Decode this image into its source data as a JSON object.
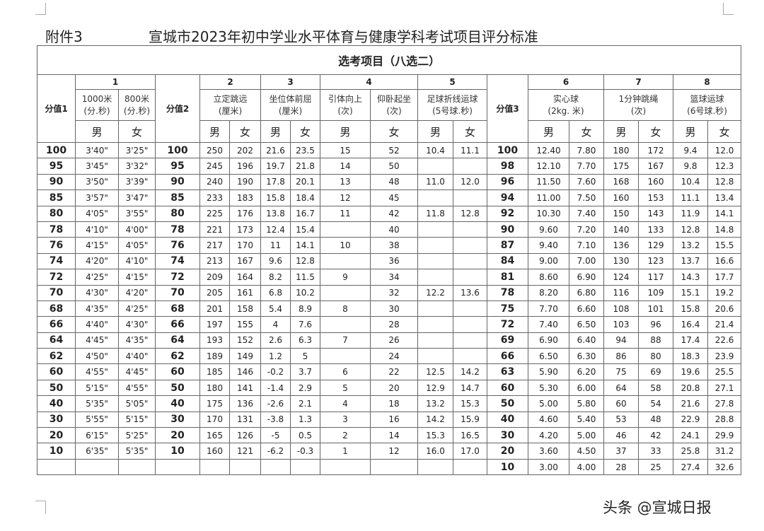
{
  "document": {
    "label": "附件3",
    "title": "宣城市2023年初中学业水平体育与健康学科考试项目评分标准",
    "table_title": "选考项目（八选二）",
    "watermark": "头条 @宣城日报"
  },
  "headers": {
    "score1": "分值1",
    "score2": "分值2",
    "score3": "分值3",
    "groups": [
      "1",
      "2",
      "3",
      "4",
      "5",
      "6",
      "7",
      "8"
    ],
    "g1_male": [
      "1000米",
      "(分.秒)"
    ],
    "g1_female": [
      "800米",
      "(分.秒)"
    ],
    "g2": [
      "立定跳远",
      "(厘米)"
    ],
    "g3": [
      "坐位体前屈",
      "(厘米)"
    ],
    "g4_male": [
      "引体向上",
      "(次)"
    ],
    "g4_female": [
      "仰卧起坐",
      "(次)"
    ],
    "g5": [
      "足球折线运球",
      "(5号球.秒)"
    ],
    "g6": [
      "实心球",
      "(2kg. 米)"
    ],
    "g7": [
      "1分钟跳绳",
      "(次)"
    ],
    "g8": [
      "篮球运球",
      "(6号球.秒)"
    ],
    "male": "男",
    "female": "女"
  },
  "rows": [
    [
      "100",
      "3'40\"",
      "3'25\"",
      "100",
      "250",
      "202",
      "21.6",
      "23.5",
      "15",
      "52",
      "10.4",
      "11.1",
      "100",
      "12.40",
      "7.80",
      "180",
      "172",
      "9.4",
      "12.0"
    ],
    [
      "95",
      "3'45\"",
      "3'32\"",
      "95",
      "245",
      "196",
      "19.7",
      "21.8",
      "14",
      "50",
      "",
      "",
      "98",
      "12.10",
      "7.70",
      "175",
      "167",
      "9.8",
      "12.3"
    ],
    [
      "90",
      "3'50\"",
      "3'39\"",
      "90",
      "240",
      "190",
      "17.8",
      "20.1",
      "13",
      "48",
      "11.0",
      "12.0",
      "96",
      "11.50",
      "7.60",
      "168",
      "160",
      "10.4",
      "12.8"
    ],
    [
      "85",
      "3'57\"",
      "3'47\"",
      "85",
      "233",
      "183",
      "15.8",
      "18.4",
      "12",
      "45",
      "",
      "",
      "94",
      "11.00",
      "7.50",
      "160",
      "153",
      "11.1",
      "13.4"
    ],
    [
      "80",
      "4'05\"",
      "3'55\"",
      "80",
      "225",
      "176",
      "13.8",
      "16.7",
      "11",
      "42",
      "11.8",
      "12.8",
      "92",
      "10.30",
      "7.40",
      "150",
      "143",
      "11.9",
      "14.1"
    ],
    [
      "78",
      "4'10\"",
      "4'00\"",
      "78",
      "221",
      "173",
      "12.4",
      "15.4",
      "",
      "40",
      "",
      "",
      "90",
      "9.60",
      "7.20",
      "140",
      "133",
      "12.8",
      "14.8"
    ],
    [
      "76",
      "4'15\"",
      "4'05\"",
      "76",
      "217",
      "170",
      "11",
      "14.1",
      "10",
      "38",
      "",
      "",
      "87",
      "9.40",
      "7.10",
      "136",
      "129",
      "13.2",
      "15.5"
    ],
    [
      "74",
      "4'20\"",
      "4'10\"",
      "74",
      "213",
      "167",
      "9.6",
      "12.8",
      "",
      "36",
      "",
      "",
      "84",
      "9.00",
      "7.00",
      "130",
      "123",
      "13.7",
      "16.6"
    ],
    [
      "72",
      "4'25\"",
      "4'15\"",
      "72",
      "209",
      "164",
      "8.2",
      "11.5",
      "9",
      "34",
      "",
      "",
      "81",
      "8.60",
      "6.90",
      "124",
      "117",
      "14.3",
      "17.7"
    ],
    [
      "70",
      "4'30\"",
      "4'20\"",
      "70",
      "205",
      "161",
      "6.8",
      "10.2",
      "",
      "32",
      "12.2",
      "13.6",
      "78",
      "8.20",
      "6.80",
      "116",
      "109",
      "15.1",
      "19.2"
    ],
    [
      "68",
      "4'35\"",
      "4'25\"",
      "68",
      "201",
      "158",
      "5.4",
      "8.9",
      "8",
      "30",
      "",
      "",
      "75",
      "7.70",
      "6.60",
      "108",
      "101",
      "15.8",
      "20.6"
    ],
    [
      "66",
      "4'40\"",
      "4'30\"",
      "66",
      "197",
      "155",
      "4",
      "7.6",
      "",
      "28",
      "",
      "",
      "72",
      "7.40",
      "6.50",
      "103",
      "96",
      "16.4",
      "21.4"
    ],
    [
      "64",
      "4'45\"",
      "4'35\"",
      "64",
      "193",
      "152",
      "2.6",
      "6.3",
      "7",
      "26",
      "",
      "",
      "69",
      "6.90",
      "6.40",
      "94",
      "88",
      "17.4",
      "22.6"
    ],
    [
      "62",
      "4'50\"",
      "4'40\"",
      "62",
      "189",
      "149",
      "1.2",
      "5",
      "",
      "24",
      "",
      "",
      "66",
      "6.50",
      "6.30",
      "86",
      "80",
      "18.3",
      "23.9"
    ],
    [
      "60",
      "4'55\"",
      "4'45\"",
      "60",
      "185",
      "146",
      "-0.2",
      "3.7",
      "6",
      "22",
      "12.5",
      "14.2",
      "63",
      "5.90",
      "6.20",
      "75",
      "69",
      "19.6",
      "25.5"
    ],
    [
      "50",
      "5'15\"",
      "4'55\"",
      "50",
      "180",
      "141",
      "-1.4",
      "2.9",
      "5",
      "20",
      "12.9",
      "14.7",
      "60",
      "5.30",
      "6.00",
      "64",
      "58",
      "20.8",
      "27.1"
    ],
    [
      "40",
      "5'35\"",
      "5'05\"",
      "40",
      "175",
      "136",
      "-2.6",
      "2.1",
      "4",
      "18",
      "13.2",
      "15.3",
      "50",
      "5.00",
      "5.80",
      "60",
      "54",
      "21.6",
      "27.8"
    ],
    [
      "30",
      "5'55\"",
      "5'15\"",
      "30",
      "170",
      "131",
      "-3.8",
      "1.3",
      "3",
      "16",
      "14.2",
      "15.9",
      "40",
      "4.60",
      "5.40",
      "53",
      "48",
      "22.9",
      "28.8"
    ],
    [
      "20",
      "6'15\"",
      "5'25\"",
      "20",
      "165",
      "126",
      "-5",
      "0.5",
      "2",
      "14",
      "15.3",
      "16.5",
      "30",
      "4.20",
      "5.00",
      "46",
      "42",
      "24.1",
      "29.9"
    ],
    [
      "10",
      "6'35\"",
      "5'35\"",
      "10",
      "160",
      "121",
      "-6.2",
      "-0.3",
      "1",
      "12",
      "16.0",
      "17.0",
      "20",
      "3.60",
      "4.50",
      "37",
      "33",
      "25.8",
      "31.2"
    ],
    [
      "",
      "",
      "",
      "",
      "",
      "",
      "",
      "",
      "",
      "",
      "",
      "",
      "10",
      "3.00",
      "4.00",
      "28",
      "25",
      "27.4",
      "32.6"
    ]
  ]
}
